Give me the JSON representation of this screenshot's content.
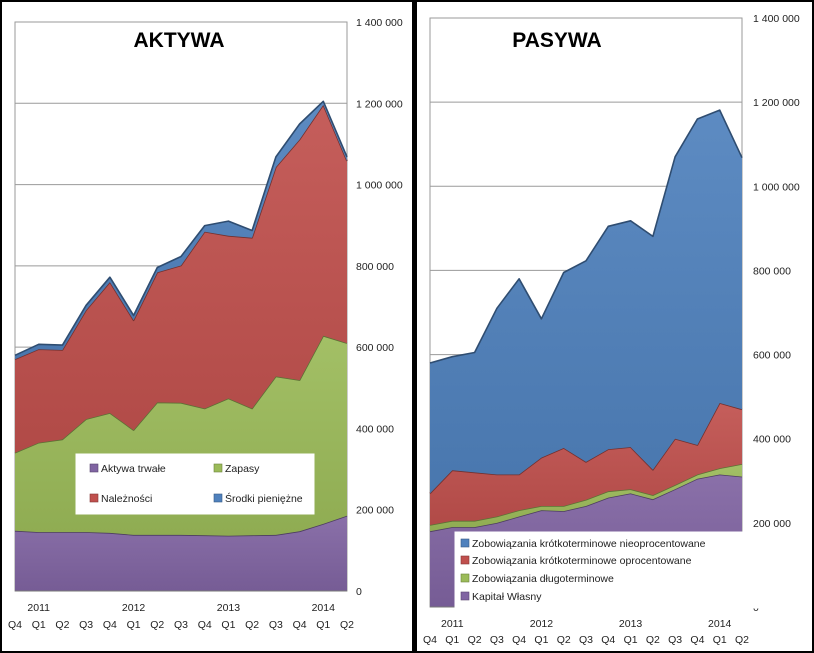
{
  "chart_data": [
    {
      "type": "area",
      "stacked": true,
      "title": "AKTYWA",
      "categories": [
        "Q4",
        "Q1",
        "Q2",
        "Q3",
        "Q4",
        "Q1",
        "Q2",
        "Q3",
        "Q4",
        "Q1",
        "Q2",
        "Q3",
        "Q4",
        "Q1",
        "Q2"
      ],
      "years": [
        {
          "label": "2011",
          "index": 1
        },
        {
          "label": "2012",
          "index": 5
        },
        {
          "label": "2013",
          "index": 9
        },
        {
          "label": "2014",
          "index": 13
        }
      ],
      "ylim": [
        0,
        1400000
      ],
      "ytick_labels": [
        "0",
        "200 000",
        "400 000",
        "600 000",
        "800 000",
        "1 000 000",
        "1 200 000",
        "1 400 000"
      ],
      "series": [
        {
          "name": "Aktywa trwałe",
          "color": "#8064A2",
          "values": [
            148000,
            145000,
            145000,
            145000,
            143000,
            138000,
            138000,
            138000,
            137000,
            136000,
            137000,
            138000,
            147000,
            165000,
            185000
          ]
        },
        {
          "name": "Zapasy",
          "color": "#9BBB59",
          "values": [
            192000,
            220000,
            228000,
            278000,
            295000,
            258000,
            326000,
            325000,
            312000,
            338000,
            312000,
            390000,
            372000,
            463000,
            425000
          ]
        },
        {
          "name": "Należności",
          "color": "#C0504D",
          "values": [
            230000,
            230000,
            220000,
            268000,
            322000,
            270000,
            320000,
            338000,
            435000,
            400000,
            420000,
            515000,
            592000,
            568000,
            448000
          ]
        },
        {
          "name": "Środki pieniężne",
          "color": "#4F81BD",
          "values": [
            10000,
            12000,
            12000,
            12000,
            12000,
            12000,
            12000,
            22000,
            15000,
            36000,
            18000,
            25000,
            38000,
            9000,
            10000
          ]
        }
      ],
      "legend_placement": "bottom-right"
    },
    {
      "type": "area",
      "stacked": true,
      "title": "PASYWA",
      "categories": [
        "Q4",
        "Q1",
        "Q2",
        "Q3",
        "Q4",
        "Q1",
        "Q2",
        "Q3",
        "Q4",
        "Q1",
        "Q2",
        "Q3",
        "Q4",
        "Q1",
        "Q2"
      ],
      "years": [
        {
          "label": "2011",
          "index": 1
        },
        {
          "label": "2012",
          "index": 5
        },
        {
          "label": "2013",
          "index": 9
        },
        {
          "label": "2014",
          "index": 13
        }
      ],
      "ylim": [
        0,
        1400000
      ],
      "ytick_labels": [
        "0",
        "200 000",
        "400 000",
        "600 000",
        "800 000",
        "1 000 000",
        "1 200 000",
        "1 400 000"
      ],
      "series": [
        {
          "name": "Kapitał Własny",
          "color": "#8064A2",
          "values": [
            180000,
            190000,
            190000,
            200000,
            215000,
            230000,
            228000,
            240000,
            260000,
            270000,
            256000,
            280000,
            305000,
            315000,
            310000
          ]
        },
        {
          "name": "Zobowiązania długoterminowe",
          "color": "#9BBB59",
          "values": [
            15000,
            15000,
            15000,
            15000,
            15000,
            10000,
            12000,
            15000,
            15000,
            10000,
            10000,
            10000,
            10000,
            15000,
            30000
          ]
        },
        {
          "name": "Zobowiązania krótkoterminowe oprocentowane",
          "color": "#C0504D",
          "values": [
            75000,
            120000,
            115000,
            100000,
            85000,
            115000,
            138000,
            90000,
            100000,
            100000,
            60000,
            110000,
            70000,
            155000,
            130000
          ]
        },
        {
          "name": "Zobowiązania krótkoterminowe nieoprocentowane",
          "color": "#4F81BD",
          "values": [
            310000,
            270000,
            285000,
            395000,
            465000,
            330000,
            417000,
            478000,
            530000,
            538000,
            555000,
            670000,
            775000,
            696000,
            598000
          ]
        }
      ],
      "legend_placement": "bottom-left"
    }
  ]
}
